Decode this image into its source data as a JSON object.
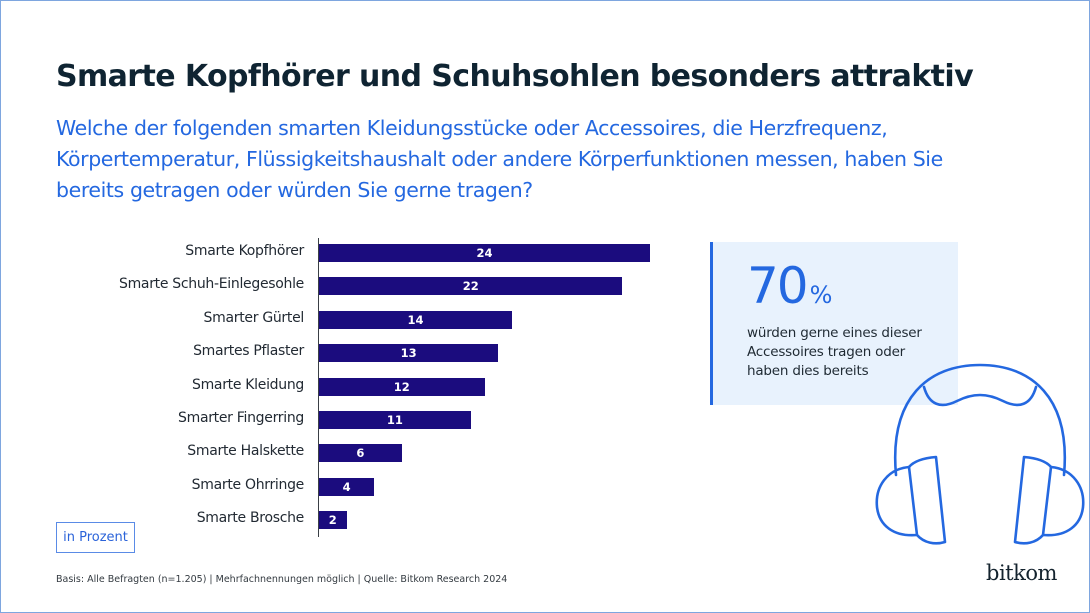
{
  "header": {
    "title": "Smarte Kopfhörer und Schuhsohlen besonders attraktiv",
    "subtitle": "Welche der folgenden smarten Kleidungsstücke oder Accessoires, die Herzfrequenz, Körpertemperatur, Flüssigkeitshaushalt oder andere Körperfunktionen messen, haben Sie bereits getragen oder würden Sie gerne tragen?"
  },
  "chart_data": {
    "type": "bar",
    "orientation": "horizontal",
    "title": "Smarte Kopfhörer und Schuhsohlen besonders attraktiv",
    "xlabel": "in Prozent",
    "ylabel": "",
    "categories": [
      "Smarte Kopfhörer",
      "Smarte Schuh-Einlegesohle",
      "Smarter Gürtel",
      "Smartes Pflaster",
      "Smarte Kleidung",
      "Smarter Fingerring",
      "Smarte Halskette",
      "Smarte Ohrringe",
      "Smarte Brosche"
    ],
    "values": [
      24,
      22,
      14,
      13,
      12,
      11,
      6,
      4,
      2
    ],
    "xlim": [
      0,
      24
    ],
    "grid": false,
    "data_labels": true,
    "bar_color": "#1b0c7e"
  },
  "unit_label": "in Prozent",
  "callout": {
    "number": "70",
    "unit": "%",
    "text": "würden gerne eines dieser Accessoires tragen oder haben dies bereits",
    "accent_color": "#2468e0"
  },
  "footer": {
    "note": "Basis: Alle Befragten (n=1.205) | Mehrfachnennungen möglich | Quelle: Bitkom Research 2024"
  },
  "branding": {
    "logo_text": "bitkom",
    "illustration": "headphones-icon"
  }
}
